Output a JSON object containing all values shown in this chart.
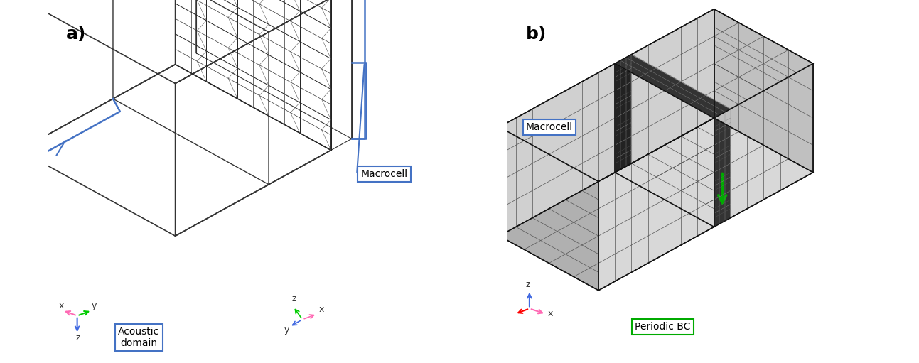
{
  "fig_width": 12.93,
  "fig_height": 5.11,
  "bg_color": "#ffffff",
  "label_a": "a)",
  "label_b": "b)",
  "label_a_fontsize": 18,
  "label_b_fontsize": 18,
  "label_fontweight": "bold",
  "acoustic_domain_label": "Acoustic\ndomain",
  "macrocell_label": "Macrocell",
  "periodic_bc_label": "Periodic BC",
  "box_color_blue": "#4472C4",
  "box_color_green": "#00AA00",
  "arrow_color_green": "#00AA00",
  "grid_color": "#555555",
  "mesh_face_color": "#d0d0d0",
  "am_face_color": "#333333",
  "axis_x_color": "#FF69B4",
  "axis_y_color": "#00CC00",
  "axis_z_color": "#4169E1",
  "axis_x_color_b": "#FF69B4",
  "axis_z_color_b": "#4169E1"
}
